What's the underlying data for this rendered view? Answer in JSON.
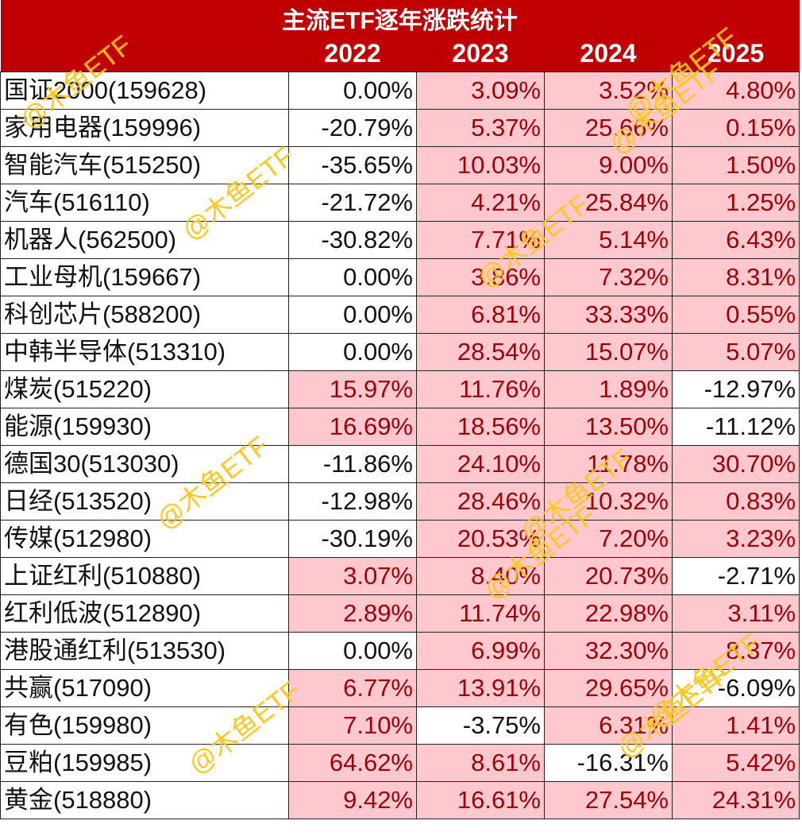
{
  "title": "主流ETF逐年涨跌统计",
  "years": [
    "2022",
    "2023",
    "2024",
    "2025"
  ],
  "watermark": "@木鱼ETF",
  "colors": {
    "header_bg": "#c00000",
    "header_text": "#ffffff",
    "positive_bg": "#ffc7ce",
    "positive_text": "#9c0006",
    "negative_bg": "#ffffff",
    "negative_text": "#111111",
    "watermark": "#ffbe00"
  },
  "rows": [
    {
      "name": "国证2000(159628)",
      "values": [
        "0.00%",
        "3.09%",
        "3.52%",
        "4.80%"
      ]
    },
    {
      "name": "家用电器(159996)",
      "values": [
        "-20.79%",
        "5.37%",
        "25.66%",
        "0.15%"
      ]
    },
    {
      "name": "智能汽车(515250)",
      "values": [
        "-35.65%",
        "10.03%",
        "9.00%",
        "1.50%"
      ]
    },
    {
      "name": "汽车(516110)",
      "values": [
        "-21.72%",
        "4.21%",
        "25.84%",
        "1.25%"
      ]
    },
    {
      "name": "机器人(562500)",
      "values": [
        "-30.82%",
        "7.71%",
        "5.14%",
        "6.43%"
      ]
    },
    {
      "name": "工业母机(159667)",
      "values": [
        "0.00%",
        "3.86%",
        "7.32%",
        "8.31%"
      ]
    },
    {
      "name": "科创芯片(588200)",
      "values": [
        "0.00%",
        "6.81%",
        "33.33%",
        "0.55%"
      ]
    },
    {
      "name": "中韩半导体(513310)",
      "values": [
        "0.00%",
        "28.54%",
        "15.07%",
        "5.07%"
      ]
    },
    {
      "name": "煤炭(515220)",
      "values": [
        "15.97%",
        "11.76%",
        "1.89%",
        "-12.97%"
      ]
    },
    {
      "name": "能源(159930)",
      "values": [
        "16.69%",
        "18.56%",
        "13.50%",
        "-11.12%"
      ]
    },
    {
      "name": "德国30(513030)",
      "values": [
        "-11.86%",
        "24.10%",
        "11.78%",
        "30.70%"
      ]
    },
    {
      "name": "日经(513520)",
      "values": [
        "-12.98%",
        "28.46%",
        "10.32%",
        "0.83%"
      ]
    },
    {
      "name": "传媒(512980)",
      "values": [
        "-30.19%",
        "20.53%",
        "7.20%",
        "3.23%"
      ]
    },
    {
      "name": "上证红利(510880)",
      "values": [
        "3.07%",
        "8.40%",
        "20.73%",
        "-2.71%"
      ]
    },
    {
      "name": "红利低波(512890)",
      "values": [
        "2.89%",
        "11.74%",
        "22.98%",
        "3.11%"
      ]
    },
    {
      "name": "港股通红利(513530)",
      "values": [
        "0.00%",
        "6.99%",
        "32.30%",
        "8.37%"
      ]
    },
    {
      "name": "共赢(517090)",
      "values": [
        "6.77%",
        "13.91%",
        "29.65%",
        "-6.09%"
      ]
    },
    {
      "name": "有色(159980)",
      "values": [
        "7.10%",
        "-3.75%",
        "6.31%",
        "1.41%"
      ]
    },
    {
      "name": "豆粕(159985)",
      "values": [
        "64.62%",
        "8.61%",
        "-16.31%",
        "5.42%"
      ]
    },
    {
      "name": "黄金(518880)",
      "values": [
        "9.42%",
        "16.61%",
        "27.54%",
        "24.31%"
      ]
    }
  ]
}
